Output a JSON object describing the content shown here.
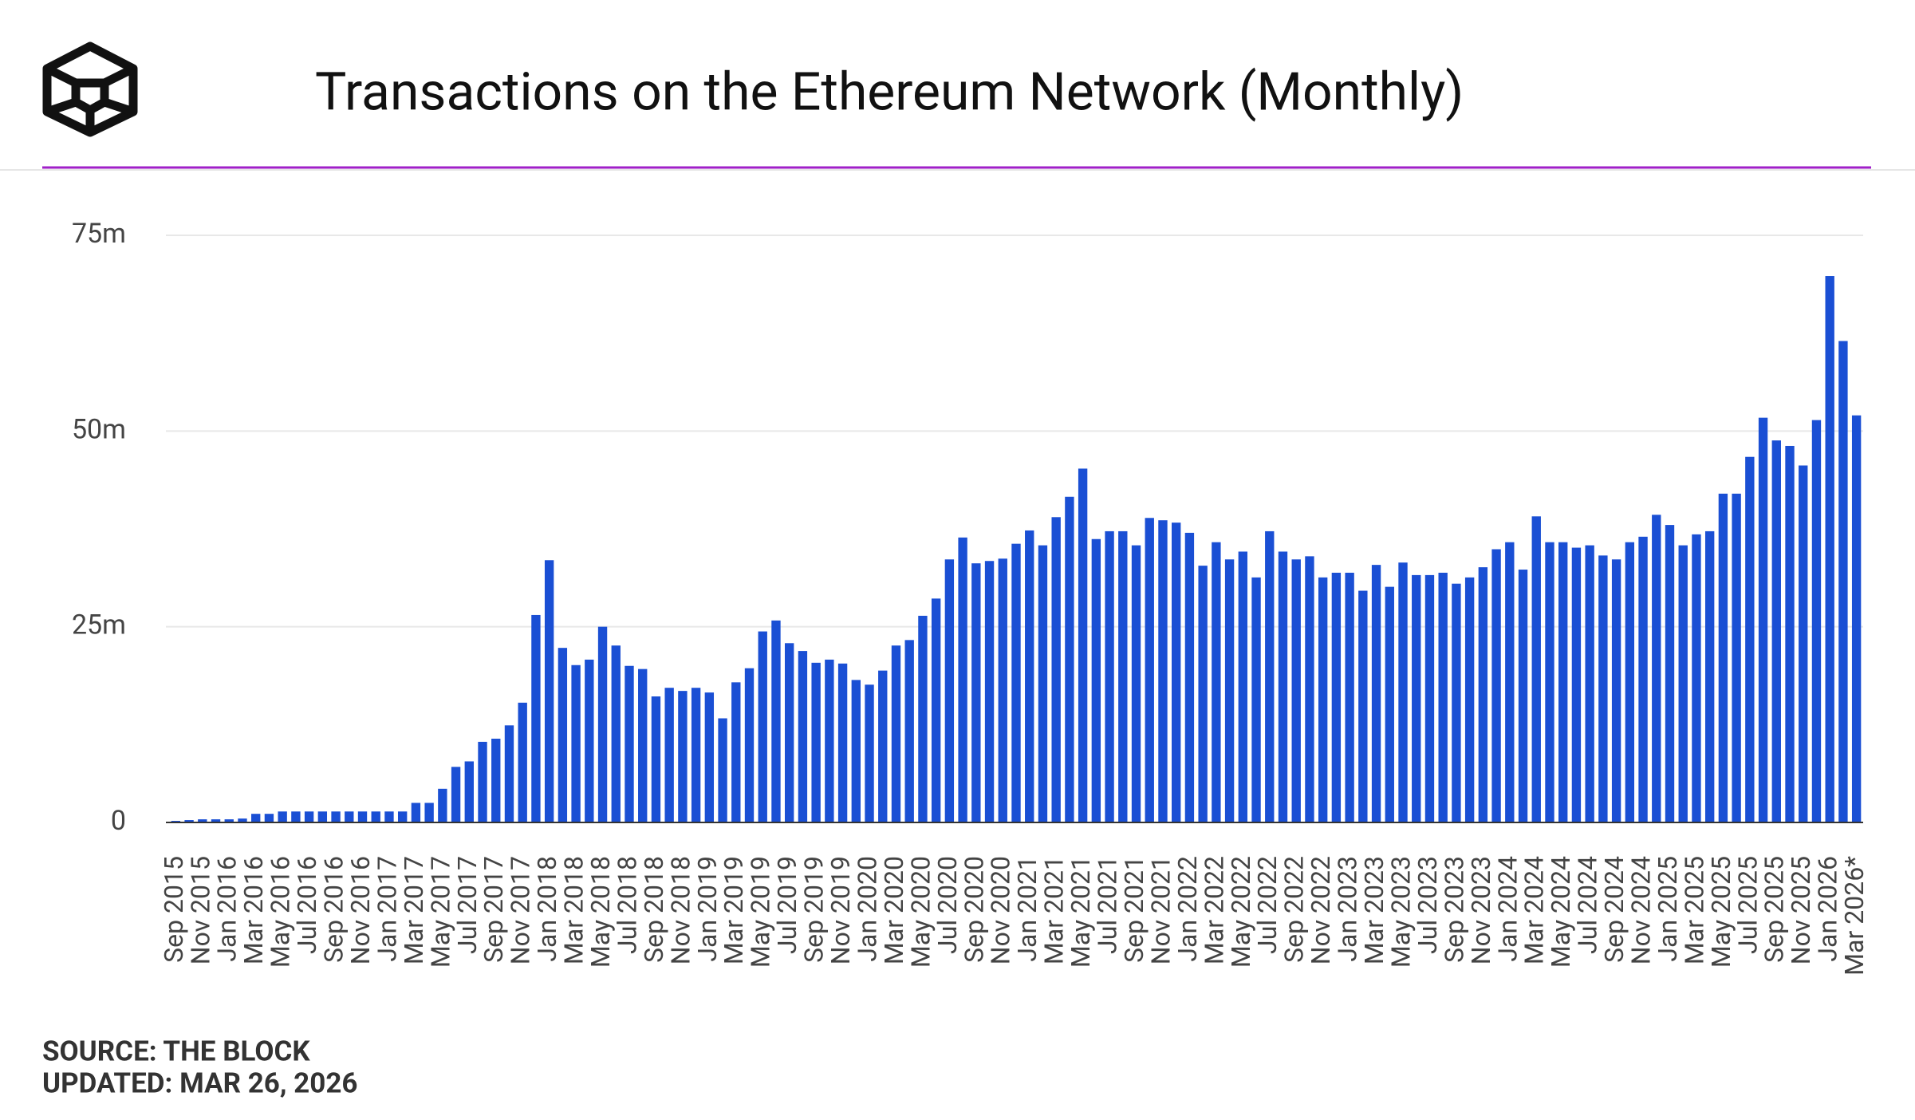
{
  "chart_data": {
    "type": "bar",
    "title": "Transactions on the Ethereum Network (Monthly)",
    "source": "SOURCE: THE BLOCK",
    "updated": "UPDATED: MAR 26, 2026",
    "categories": [
      "Sep 2015",
      null,
      "Nov 2015",
      null,
      "Jan 2016",
      null,
      "Mar 2016",
      null,
      "May 2016",
      null,
      "Jul 2016",
      null,
      "Sep 2016",
      null,
      "Nov 2016",
      null,
      "Jan 2017",
      null,
      "Mar 2017",
      null,
      "May 2017",
      null,
      "Jul 2017",
      null,
      "Sep 2017",
      null,
      "Nov 2017",
      null,
      "Jan 2018",
      null,
      "Mar 2018",
      null,
      "May 2018",
      null,
      "Jul 2018",
      null,
      "Sep 2018",
      null,
      "Nov 2018",
      null,
      "Jan 2019",
      null,
      "Mar 2019",
      null,
      "May 2019",
      null,
      "Jul 2019",
      null,
      "Sep 2019",
      null,
      "Nov 2019",
      null,
      "Jan 2020",
      null,
      "Mar 2020",
      null,
      "May 2020",
      null,
      "Jul 2020",
      null,
      "Sep 2020",
      null,
      "Nov 2020",
      null,
      "Jan 2021",
      null,
      "Mar 2021",
      null,
      "May 2021",
      null,
      "Jul 2021",
      null,
      "Sep 2021",
      null,
      "Nov 2021",
      null,
      "Jan 2022",
      null,
      "Mar 2022",
      null,
      "May 2022",
      null,
      "Jul 2022",
      null,
      "Sep 2022",
      null,
      "Nov 2022",
      null,
      "Jan 2023",
      null,
      "Mar 2023",
      null,
      "May 2023",
      null,
      "Jul 2023",
      null,
      "Sep 2023",
      null,
      "Nov 2023",
      null,
      "Jan 2024",
      null,
      "Mar 2024",
      null,
      "May 2024",
      null,
      "Jul 2024",
      null,
      "Sep 2024",
      null,
      "Nov 2024",
      null,
      "Jan 2025",
      null,
      "Mar 2025",
      null,
      "May 2025",
      null,
      "Jul 2025",
      null,
      "Sep 2025",
      null,
      "Nov 2025",
      null,
      "Jan 2026",
      null,
      "Mar 2026*"
    ],
    "values": [
      0.2,
      0.3,
      0.4,
      0.4,
      0.4,
      0.5,
      1.1,
      1.1,
      1.4,
      1.4,
      1.4,
      1.4,
      1.4,
      1.4,
      1.4,
      1.4,
      1.4,
      1.4,
      2.5,
      2.5,
      4.3,
      7.1,
      7.8,
      10.3,
      10.7,
      12.4,
      15.3,
      26.5,
      33.5,
      22.3,
      20.1,
      20.8,
      25.0,
      22.6,
      20.0,
      19.6,
      16.1,
      17.2,
      16.8,
      17.2,
      16.6,
      13.3,
      17.9,
      19.7,
      24.4,
      25.8,
      22.9,
      21.9,
      20.4,
      20.8,
      20.3,
      18.2,
      17.6,
      19.4,
      22.6,
      23.3,
      26.4,
      28.6,
      33.6,
      36.4,
      33.1,
      33.4,
      33.7,
      35.6,
      37.3,
      35.4,
      39.0,
      41.6,
      45.2,
      36.2,
      37.2,
      37.2,
      35.4,
      38.9,
      38.6,
      38.3,
      37.0,
      32.8,
      35.8,
      33.6,
      34.6,
      31.3,
      37.2,
      34.6,
      33.6,
      34.0,
      31.3,
      31.9,
      31.9,
      29.6,
      32.9,
      30.1,
      33.2,
      31.6,
      31.6,
      31.9,
      30.5,
      31.3,
      32.6,
      34.9,
      35.8,
      32.3,
      39.1,
      35.8,
      35.8,
      35.1,
      35.4,
      34.1,
      33.6,
      35.8,
      36.5,
      39.3,
      38.0,
      35.4,
      36.8,
      37.2,
      42.0,
      42.0,
      46.7,
      51.7,
      48.8,
      48.1,
      45.6,
      51.4,
      69.8,
      61.5,
      52.0
    ],
    "color": "#1a4fd4",
    "ylim": [
      0,
      75
    ],
    "yticks": [
      0,
      {
        "value": 25,
        "label": "25m"
      },
      {
        "value": 50,
        "label": "50m"
      },
      {
        "value": 75,
        "label": "75m"
      }
    ],
    "grid": true
  }
}
